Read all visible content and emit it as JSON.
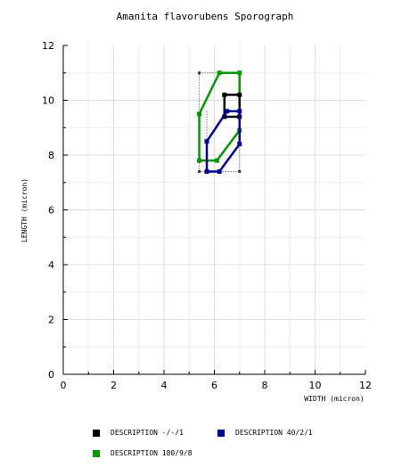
{
  "chart_data": {
    "type": "line",
    "title": "Amanita flavorubens Sporograph",
    "xlabel": "WIDTH (micron)",
    "ylabel": "LENGTH (micron)",
    "xlim": [
      0,
      12
    ],
    "ylim": [
      0,
      12
    ],
    "xticks": [
      "0",
      "2",
      "4",
      "6",
      "8",
      "10",
      "12"
    ],
    "yticks": [
      "0",
      "2",
      "4",
      "6",
      "8",
      "10",
      "12"
    ],
    "grid": true,
    "legend_position": "bottom",
    "dotted_box": [
      {
        "x": 5.4,
        "y": 11.0
      },
      {
        "x": 7.0,
        "y": 11.0
      },
      {
        "x": 7.0,
        "y": 7.4
      },
      {
        "x": 5.4,
        "y": 7.4
      },
      {
        "x": 5.4,
        "y": 11.0
      }
    ],
    "inner_dotted": [
      {
        "x": 5.7,
        "y": 9.6
      },
      {
        "x": 5.7,
        "y": 7.4
      }
    ],
    "series": [
      {
        "name": "DESCRIPTION 180/9/8",
        "color": "#009900",
        "points": [
          {
            "x": 6.2,
            "y": 11.0
          },
          {
            "x": 7.0,
            "y": 11.0
          },
          {
            "x": 7.0,
            "y": 8.9
          },
          {
            "x": 6.1,
            "y": 7.8
          },
          {
            "x": 5.4,
            "y": 7.8
          },
          {
            "x": 5.4,
            "y": 9.5
          },
          {
            "x": 6.2,
            "y": 11.0
          }
        ]
      },
      {
        "name": "DESCRIPTION -/-/1",
        "color": "#000000",
        "points": [
          {
            "x": 6.4,
            "y": 10.2
          },
          {
            "x": 7.0,
            "y": 10.2
          },
          {
            "x": 7.0,
            "y": 9.4
          },
          {
            "x": 6.4,
            "y": 9.4
          },
          {
            "x": 6.4,
            "y": 10.2
          }
        ]
      },
      {
        "name": "DESCRIPTION 40/2/1",
        "color": "#000099",
        "points": [
          {
            "x": 6.5,
            "y": 9.6
          },
          {
            "x": 7.0,
            "y": 9.6
          },
          {
            "x": 7.0,
            "y": 8.4
          },
          {
            "x": 6.2,
            "y": 7.4
          },
          {
            "x": 5.7,
            "y": 7.4
          },
          {
            "x": 5.7,
            "y": 8.5
          },
          {
            "x": 6.5,
            "y": 9.6
          }
        ]
      }
    ],
    "legend_items": [
      {
        "label": "DESCRIPTION -/-/1",
        "color": "#000000"
      },
      {
        "label": "DESCRIPTION 40/2/1",
        "color": "#000099"
      },
      {
        "label": "DESCRIPTION 180/9/8",
        "color": "#009900"
      }
    ]
  }
}
